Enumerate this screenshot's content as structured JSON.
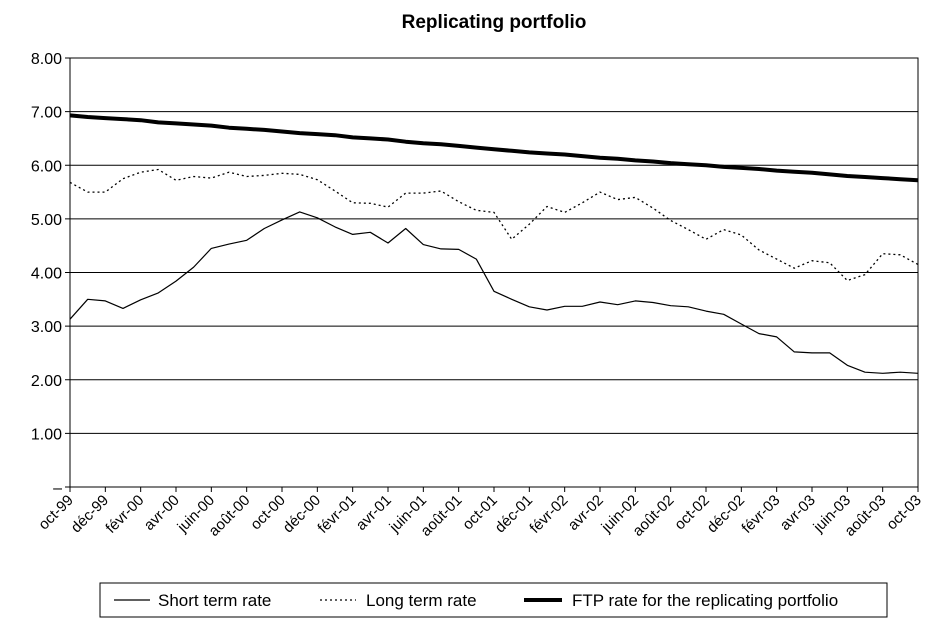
{
  "chart_data": {
    "type": "line",
    "title": "Replicating portfolio",
    "xlabel": "",
    "ylabel": "",
    "ylim": [
      0,
      8
    ],
    "y_ticks": [
      "–",
      "1.00",
      "2.00",
      "3.00",
      "4.00",
      "5.00",
      "6.00",
      "7.00",
      "8.00"
    ],
    "y_tick_values": [
      0,
      1,
      2,
      3,
      4,
      5,
      6,
      7,
      8
    ],
    "x_tick_labels": [
      "oct-99",
      "déc-99",
      "févr-00",
      "avr-00",
      "juin-00",
      "août-00",
      "oct-00",
      "déc-00",
      "févr-01",
      "avr-01",
      "juin-01",
      "août-01",
      "oct-01",
      "déc-01",
      "févr-02",
      "avr-02",
      "juin-02",
      "août-02",
      "oct-02",
      "déc-02",
      "févr-03",
      "avr-03",
      "juin-03",
      "août-03",
      "oct-03"
    ],
    "x_tick_indices": [
      0,
      2,
      4,
      6,
      8,
      10,
      12,
      14,
      16,
      18,
      20,
      22,
      24,
      26,
      28,
      30,
      32,
      34,
      36,
      38,
      40,
      42,
      44,
      46,
      48
    ],
    "grid": true,
    "legend_position": "bottom",
    "series": [
      {
        "name": "Short term rate",
        "style": "solid-thin",
        "color": "#000000",
        "values": [
          3.13,
          3.5,
          3.47,
          3.33,
          3.49,
          3.62,
          3.84,
          4.1,
          4.45,
          4.53,
          4.6,
          4.82,
          4.98,
          5.13,
          5.02,
          4.85,
          4.71,
          4.75,
          4.55,
          4.82,
          4.52,
          4.44,
          4.43,
          4.25,
          3.65,
          3.5,
          3.36,
          3.3,
          3.37,
          3.37,
          3.45,
          3.4,
          3.47,
          3.44,
          3.38,
          3.36,
          3.28,
          3.22,
          3.04,
          2.86,
          2.8,
          2.52,
          2.5,
          2.5,
          2.27,
          2.14,
          2.12,
          2.14,
          2.12
        ]
      },
      {
        "name": "Long term rate",
        "style": "dotted",
        "color": "#000000",
        "values": [
          5.68,
          5.5,
          5.5,
          5.75,
          5.87,
          5.92,
          5.72,
          5.79,
          5.76,
          5.87,
          5.79,
          5.81,
          5.85,
          5.83,
          5.73,
          5.52,
          5.3,
          5.29,
          5.22,
          5.48,
          5.48,
          5.52,
          5.32,
          5.16,
          5.12,
          4.62,
          4.9,
          5.23,
          5.12,
          5.3,
          5.5,
          5.36,
          5.4,
          5.2,
          4.97,
          4.8,
          4.62,
          4.8,
          4.7,
          4.42,
          4.25,
          4.08,
          4.22,
          4.18,
          3.85,
          3.96,
          4.35,
          4.33,
          4.15
        ]
      },
      {
        "name": "FTP rate for the replicating portfolio",
        "style": "solid-thick",
        "color": "#000000",
        "values": [
          6.93,
          6.9,
          6.88,
          6.86,
          6.84,
          6.8,
          6.78,
          6.76,
          6.74,
          6.7,
          6.68,
          6.66,
          6.63,
          6.6,
          6.58,
          6.56,
          6.52,
          6.5,
          6.48,
          6.44,
          6.41,
          6.39,
          6.36,
          6.33,
          6.3,
          6.27,
          6.24,
          6.22,
          6.2,
          6.17,
          6.14,
          6.12,
          6.09,
          6.07,
          6.04,
          6.02,
          6.0,
          5.97,
          5.95,
          5.93,
          5.9,
          5.88,
          5.86,
          5.83,
          5.8,
          5.78,
          5.76,
          5.74,
          5.72
        ]
      }
    ]
  }
}
